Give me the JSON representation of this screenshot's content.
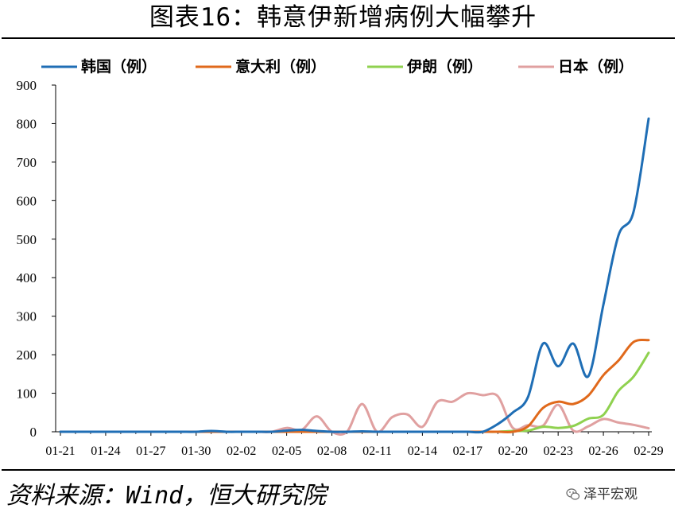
{
  "title": "图表16：韩意伊新增病例大幅攀升",
  "source": "资料来源：Wind，恒大研究院",
  "brand": {
    "label": "泽平宏观",
    "icon": "wechat-icon"
  },
  "chart_data": {
    "type": "line",
    "title": "",
    "xlabel": "",
    "ylabel": "",
    "ylim": [
      0,
      900
    ],
    "yticks": [
      0,
      100,
      200,
      300,
      400,
      500,
      600,
      700,
      800,
      900
    ],
    "xlim": [
      0,
      39
    ],
    "xticks": [
      {
        "x": 0,
        "label": "01-21"
      },
      {
        "x": 3,
        "label": "01-24"
      },
      {
        "x": 6,
        "label": "01-27"
      },
      {
        "x": 9,
        "label": "01-30"
      },
      {
        "x": 12,
        "label": "02-02"
      },
      {
        "x": 15,
        "label": "02-05"
      },
      {
        "x": 18,
        "label": "02-08"
      },
      {
        "x": 21,
        "label": "02-11"
      },
      {
        "x": 24,
        "label": "02-14"
      },
      {
        "x": 27,
        "label": "02-17"
      },
      {
        "x": 30,
        "label": "02-20"
      },
      {
        "x": 33,
        "label": "02-23"
      },
      {
        "x": 36,
        "label": "02-26"
      },
      {
        "x": 39,
        "label": "02-29"
      }
    ],
    "legend_position": "top",
    "grid": false,
    "series": [
      {
        "name": "韩国（例）",
        "color": "#1f6eb5",
        "values": [
          0,
          0,
          0,
          0,
          0,
          0,
          0,
          0,
          0,
          0,
          2,
          0,
          0,
          0,
          0,
          3,
          5,
          2,
          0,
          0,
          1,
          0,
          0,
          0,
          0,
          0,
          0,
          0,
          0,
          20,
          50,
          90,
          229,
          170,
          229,
          144,
          330,
          510,
          571,
          813
        ]
      },
      {
        "name": "意大利（例）",
        "color": "#e0691b",
        "values": [
          0,
          0,
          0,
          0,
          0,
          0,
          0,
          0,
          0,
          0,
          0,
          0,
          0,
          0,
          0,
          0,
          0,
          0,
          0,
          0,
          0,
          0,
          0,
          0,
          0,
          0,
          0,
          0,
          0,
          0,
          0,
          14,
          62,
          78,
          72,
          94,
          147,
          185,
          233,
          238
        ]
      },
      {
        "name": "伊朗（例）",
        "color": "#8fd14f",
        "values": [
          0,
          0,
          0,
          0,
          0,
          0,
          0,
          0,
          0,
          0,
          0,
          0,
          0,
          0,
          0,
          0,
          0,
          0,
          0,
          0,
          0,
          0,
          0,
          0,
          0,
          0,
          0,
          0,
          0,
          0,
          2,
          3,
          13,
          10,
          15,
          34,
          44,
          106,
          143,
          205
        ]
      },
      {
        "name": "日本（例）",
        "color": "#e0a0a0",
        "values": [
          0,
          0,
          0,
          0,
          0,
          0,
          0,
          0,
          0,
          0,
          0,
          0,
          0,
          0,
          0,
          10,
          5,
          40,
          0,
          0,
          72,
          0,
          38,
          45,
          13,
          78,
          78,
          100,
          95,
          92,
          10,
          17,
          16,
          70,
          3,
          14,
          33,
          24,
          18,
          9
        ]
      }
    ]
  }
}
